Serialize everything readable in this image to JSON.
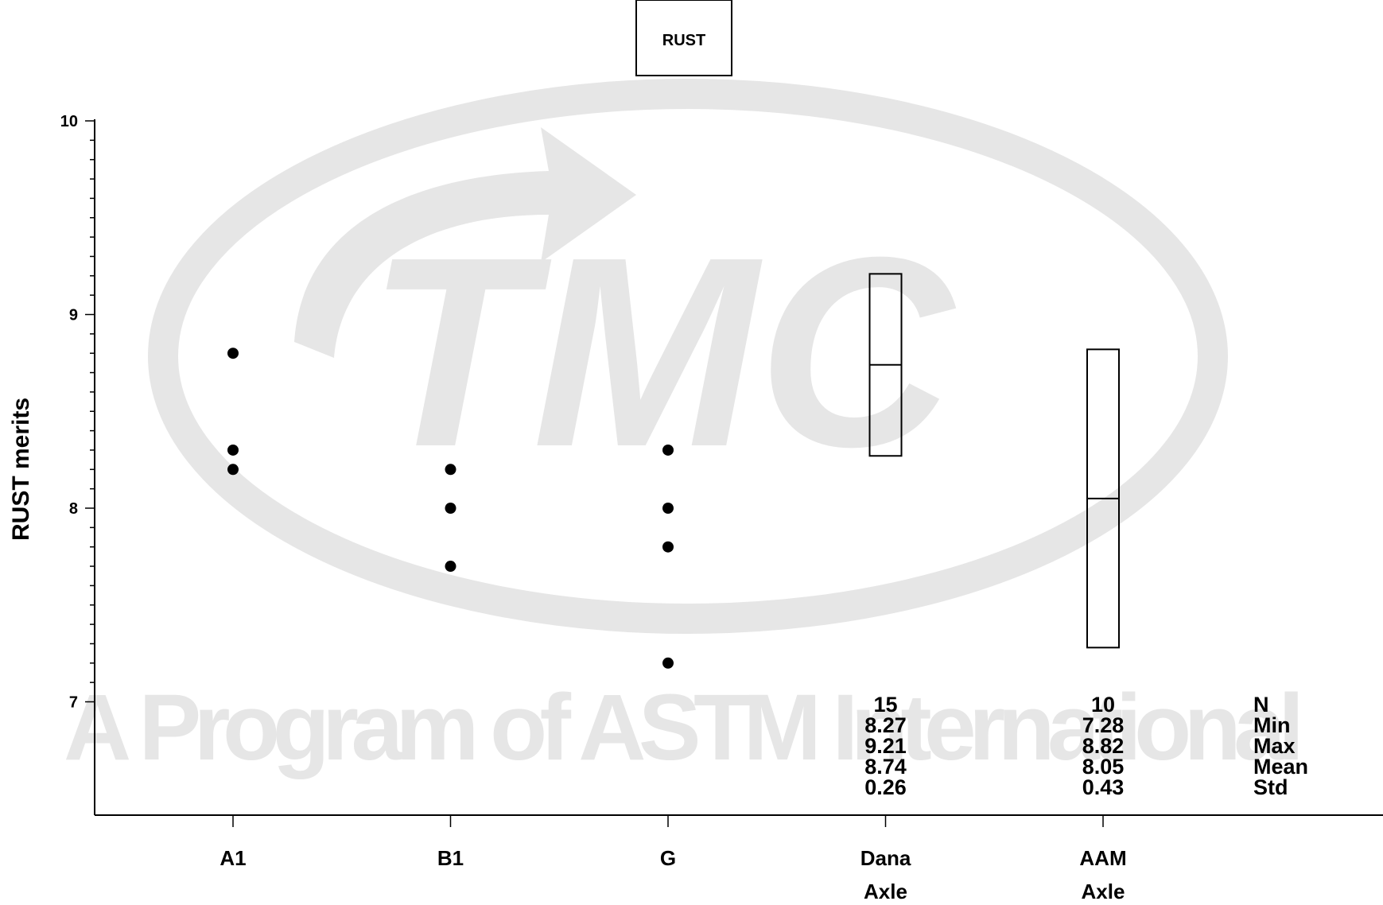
{
  "chart_data": {
    "type": "scatter",
    "title": "RUST",
    "ylabel": "RUST merits",
    "xlabel": "",
    "ylim": [
      6.42,
      10
    ],
    "yticks": [
      7,
      8,
      9,
      10
    ],
    "grid": false,
    "categories": [
      "A1",
      "B1",
      "G",
      "Dana Axle",
      "AAM Axle"
    ],
    "category_lines": [
      [
        "A1"
      ],
      [
        "B1"
      ],
      [
        "G"
      ],
      [
        "Dana",
        "Axle"
      ],
      [
        "AAM",
        "Axle"
      ]
    ],
    "points": [
      {
        "category": "A1",
        "values": [
          8.8,
          8.3,
          8.2
        ]
      },
      {
        "category": "B1",
        "values": [
          8.2,
          8.0,
          7.7
        ]
      },
      {
        "category": "G",
        "values": [
          8.3,
          8.0,
          7.8,
          7.2
        ]
      }
    ],
    "boxes": [
      {
        "category": "Dana Axle",
        "min": 8.27,
        "max": 9.21,
        "mean": 8.74
      },
      {
        "category": "AAM Axle",
        "min": 7.28,
        "max": 8.82,
        "mean": 8.05
      }
    ],
    "stats_table": {
      "row_labels": [
        "N",
        "Min",
        "Max",
        "Mean",
        "Std"
      ],
      "columns": [
        {
          "category": "Dana Axle",
          "values": [
            "15",
            "8.27",
            "9.21",
            "8.74",
            "0.26"
          ]
        },
        {
          "category": "AAM Axle",
          "values": [
            "10",
            "7.28",
            "8.82",
            "8.05",
            "0.43"
          ]
        }
      ]
    },
    "watermark_text": "A Program of ASTM International"
  },
  "colors": {
    "axis": "#000000",
    "points": "#000000",
    "box_stroke": "#000000",
    "watermark": "#e6e6e6"
  }
}
